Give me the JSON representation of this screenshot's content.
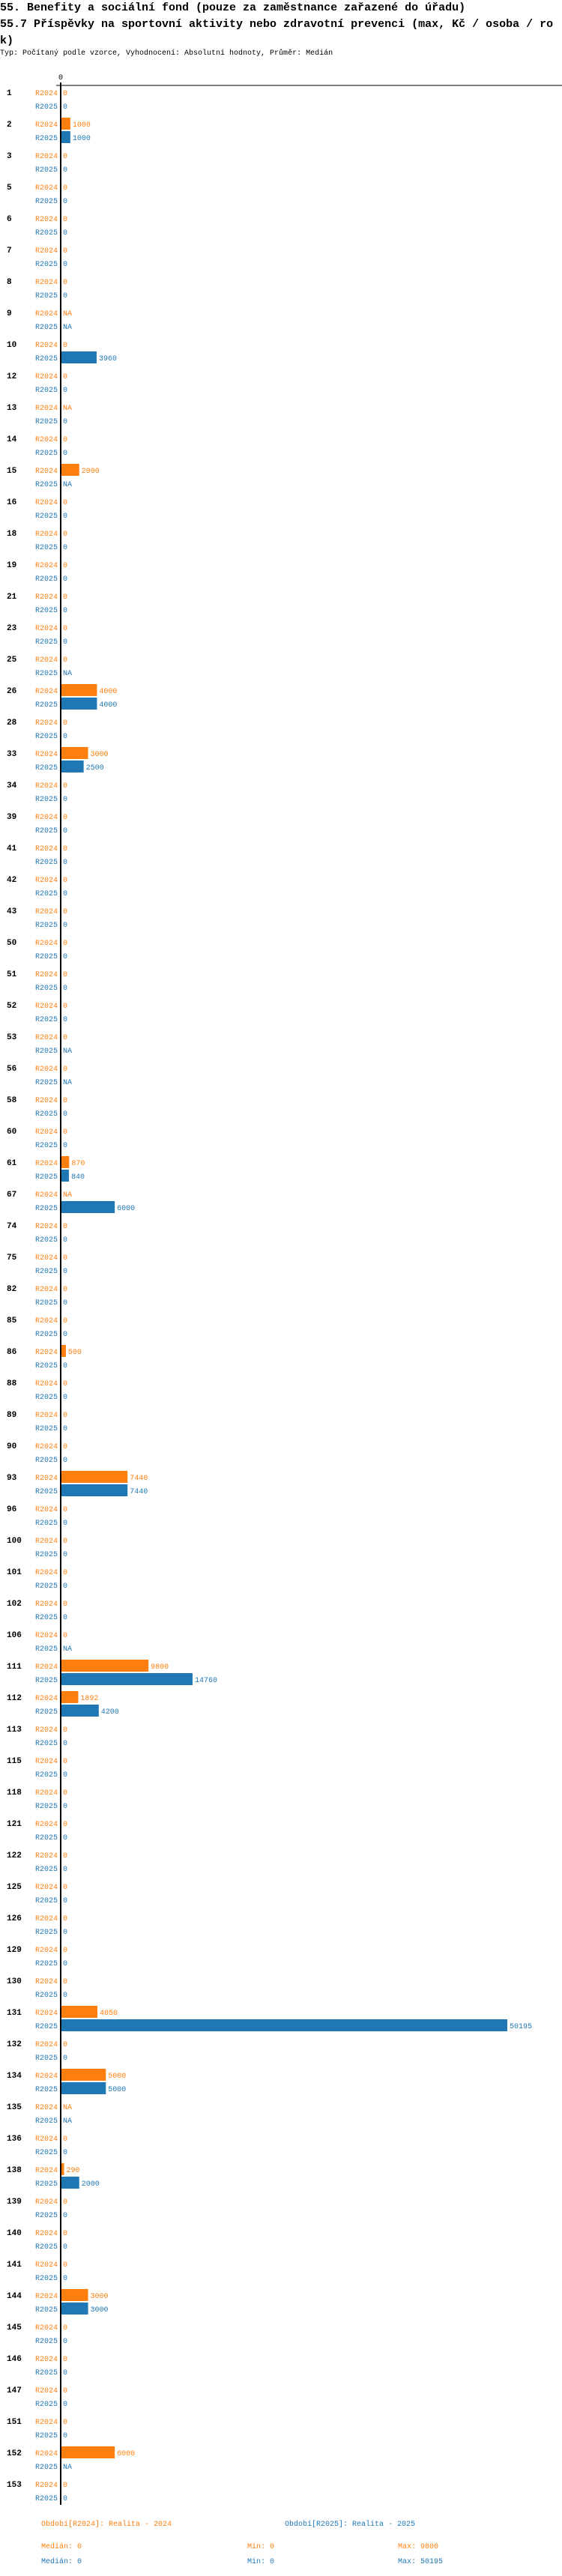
{
  "title_line1": "55. Benefity a sociální fond (pouze za zaměstnance zařazené do úřadu)",
  "title_line2": "55.7 Příspěvky na sportovní aktivity nebo zdravotní prevenci (max, Kč / osoba / rok)",
  "subtitle": "Typ: Počítaný podle vzorce, Vyhodnocení: Absolutní hodnoty, Průměr: Medián",
  "colors": {
    "R2024": "#ff7f0e",
    "R2025": "#1f77b4"
  },
  "chart_data": {
    "type": "bar",
    "orientation": "horizontal",
    "axis_tick_label": "0",
    "xlim": [
      0,
      50195
    ],
    "series_names": [
      "R2024",
      "R2025"
    ],
    "categories": [
      "1",
      "2",
      "3",
      "5",
      "6",
      "7",
      "8",
      "9",
      "10",
      "12",
      "13",
      "14",
      "15",
      "16",
      "18",
      "19",
      "21",
      "23",
      "25",
      "26",
      "28",
      "33",
      "34",
      "39",
      "41",
      "42",
      "43",
      "50",
      "51",
      "52",
      "53",
      "56",
      "58",
      "60",
      "61",
      "67",
      "74",
      "75",
      "82",
      "85",
      "86",
      "88",
      "89",
      "90",
      "93",
      "96",
      "100",
      "101",
      "102",
      "106",
      "111",
      "112",
      "113",
      "115",
      "118",
      "121",
      "122",
      "125",
      "126",
      "129",
      "130",
      "131",
      "132",
      "134",
      "135",
      "136",
      "138",
      "139",
      "140",
      "141",
      "144",
      "145",
      "146",
      "147",
      "151",
      "152",
      "153"
    ],
    "series": [
      {
        "name": "R2024",
        "values": [
          0,
          1000,
          0,
          0,
          0,
          0,
          0,
          "NA",
          0,
          0,
          "NA",
          0,
          2000,
          0,
          0,
          0,
          0,
          0,
          0,
          4000,
          0,
          3000,
          0,
          0,
          0,
          0,
          0,
          0,
          0,
          0,
          0,
          0,
          0,
          0,
          870,
          "NA",
          0,
          0,
          0,
          0,
          500,
          0,
          0,
          0,
          7440,
          0,
          0,
          0,
          0,
          0,
          9800,
          1892,
          0,
          0,
          0,
          0,
          0,
          0,
          0,
          0,
          0,
          4050,
          0,
          5000,
          "NA",
          0,
          290,
          0,
          0,
          0,
          3000,
          0,
          0,
          0,
          0,
          6000,
          0
        ]
      },
      {
        "name": "R2025",
        "values": [
          0,
          1000,
          0,
          0,
          0,
          0,
          0,
          "NA",
          3960,
          0,
          0,
          0,
          "NA",
          0,
          0,
          0,
          0,
          0,
          "NA",
          4000,
          0,
          2500,
          0,
          0,
          0,
          0,
          0,
          0,
          0,
          0,
          "NA",
          "NA",
          0,
          0,
          840,
          6000,
          0,
          0,
          0,
          0,
          0,
          0,
          0,
          0,
          7440,
          0,
          0,
          0,
          0,
          "NA",
          14760,
          4200,
          0,
          0,
          0,
          0,
          0,
          0,
          0,
          0,
          0,
          50195,
          0,
          5000,
          "NA",
          0,
          2000,
          0,
          0,
          0,
          3000,
          0,
          0,
          0,
          0,
          "NA",
          0
        ]
      }
    ]
  },
  "legend": {
    "r2024": "Období[R2024]: Realita - 2024",
    "r2025": "Období[R2025]: Realita - 2025"
  },
  "stats": {
    "r2024": {
      "median": "Medián: 0",
      "min": "Min: 0",
      "max": "Max: 9800"
    },
    "r2025": {
      "median": "Medián: 0",
      "min": "Min: 0",
      "max": "Max: 50195"
    }
  }
}
